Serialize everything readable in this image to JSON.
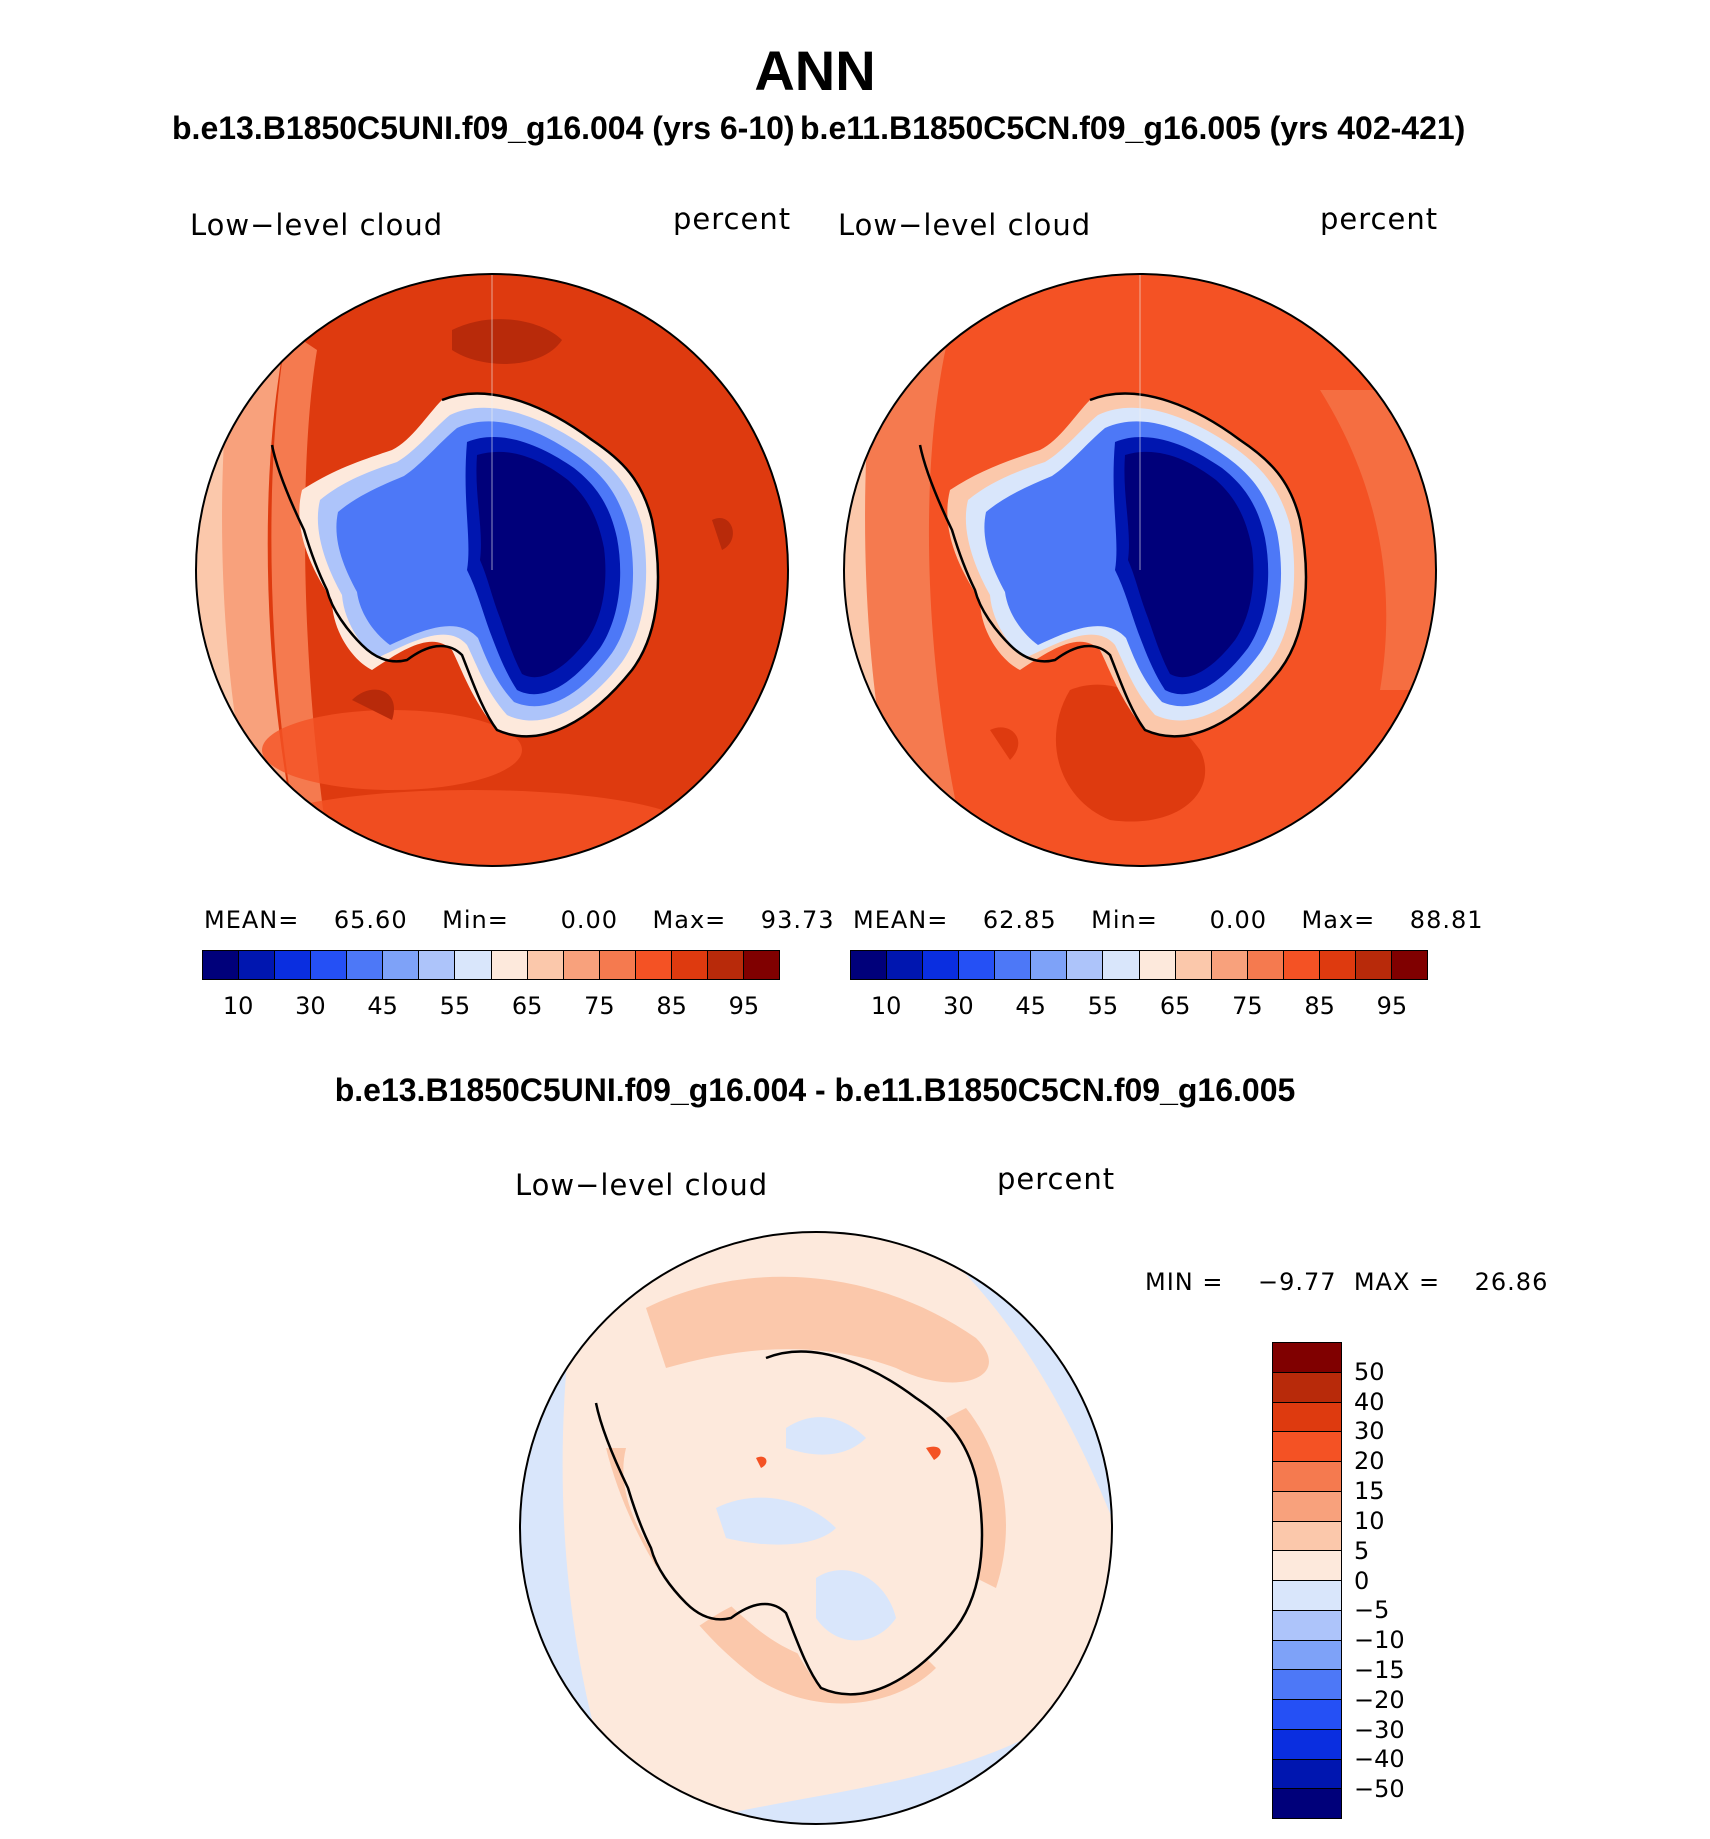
{
  "figure": {
    "title": "ANN"
  },
  "panel_left": {
    "run_title": "b.e13.B1850C5UNI.f09_g16.004 (yrs 6-10)",
    "field_label": "Low−level cloud",
    "units_label": "percent",
    "mean_label": "MEAN=",
    "mean_value": "65.60",
    "min_label": "Min=",
    "min_value": "0.00",
    "max_label": "Max=",
    "max_value": "93.73"
  },
  "panel_right": {
    "run_title": "b.e11.B1850C5CN.f09_g16.005 (yrs 402-421)",
    "field_label": "Low−level cloud",
    "units_label": "percent",
    "mean_label": "MEAN=",
    "mean_value": "62.85",
    "min_label": "Min=",
    "min_value": "0.00",
    "max_label": "Max=",
    "max_value": "88.81"
  },
  "panel_diff": {
    "run_title": "b.e13.B1850C5UNI.f09_g16.004 - b.e11.B1850C5CN.f09_g16.005",
    "field_label": "Low−level cloud",
    "units_label": "percent",
    "min_label": "MIN =",
    "min_value": "−9.77",
    "max_label": "MAX =",
    "max_value": "26.86"
  },
  "colorbar_main": {
    "tick_labels": [
      "10",
      "30",
      "45",
      "55",
      "65",
      "75",
      "85",
      "95"
    ],
    "colors": [
      "#00007a",
      "#0016b0",
      "#0a2ee0",
      "#2550f5",
      "#4d78f7",
      "#7ea2f8",
      "#adc4fa",
      "#d9e6fb",
      "#fde9dc",
      "#fbc8ab",
      "#f8a17c",
      "#f57a4f",
      "#f45224",
      "#de3a0f",
      "#b82a0a",
      "#800000"
    ]
  },
  "colorbar_diff": {
    "tick_labels": [
      "50",
      "40",
      "30",
      "20",
      "15",
      "10",
      "5",
      "0",
      "−5",
      "−10",
      "−15",
      "−20",
      "−30",
      "−40",
      "−50"
    ],
    "colors": [
      "#800000",
      "#b82a0a",
      "#de3a0f",
      "#f45224",
      "#f57a4f",
      "#f8a17c",
      "#fbc8ab",
      "#fde9dc",
      "#d9e6fb",
      "#adc4fa",
      "#7ea2f8",
      "#4d78f7",
      "#2550f5",
      "#0a2ee0",
      "#0016b0",
      "#00007a"
    ]
  }
}
